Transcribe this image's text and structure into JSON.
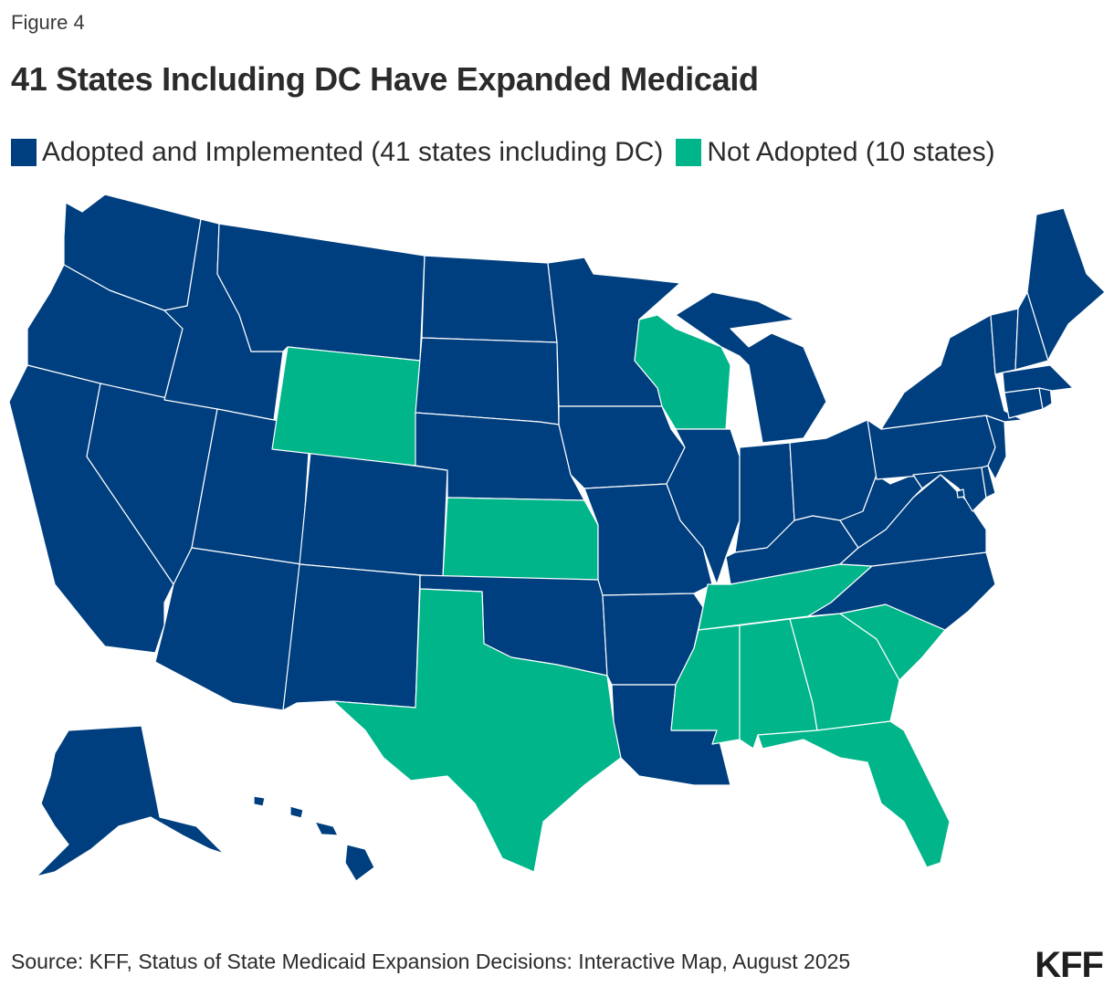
{
  "figure_label": "Figure 4",
  "title": "41 States Including DC Have Expanded Medicaid",
  "legend": [
    {
      "label": "Adopted and Implemented (41 states including DC)",
      "color": "#003f7f"
    },
    {
      "label": "Not Adopted (10 states)",
      "color": "#00b58a"
    }
  ],
  "source": "Source: KFF, Status of State Medicaid Expansion Decisions: Interactive Map, August 2025",
  "logo": "KFF",
  "states": {
    "adopted": [
      "WA",
      "OR",
      "CA",
      "NV",
      "ID",
      "MT",
      "UT",
      "AZ",
      "CO",
      "NM",
      "ND",
      "SD",
      "NE",
      "OK",
      "MN",
      "IA",
      "MO",
      "AR",
      "LA",
      "IL",
      "MI",
      "IN",
      "OH",
      "KY",
      "WV",
      "VA",
      "NC",
      "PA",
      "NY",
      "NJ",
      "DE",
      "MD",
      "DC",
      "CT",
      "RI",
      "MA",
      "VT",
      "NH",
      "ME",
      "AK",
      "HI"
    ],
    "not_adopted": [
      "WY",
      "KS",
      "TX",
      "WI",
      "TN",
      "MS",
      "AL",
      "GA",
      "SC",
      "FL"
    ]
  }
}
